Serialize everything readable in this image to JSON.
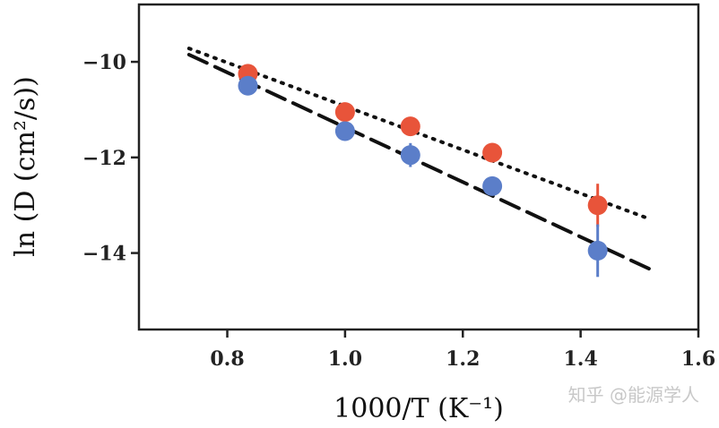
{
  "chart_data": {
    "type": "scatter",
    "title": "",
    "xlabel": "1000/T (K⁻¹)",
    "ylabel": "ln (D (cm²/s))",
    "xlim": [
      0.65,
      1.6
    ],
    "ylim": [
      -15.6,
      -8.8
    ],
    "x_ticks": [
      0.8,
      1.0,
      1.2,
      1.4,
      1.6
    ],
    "x_tick_labels": [
      "0.8",
      "1.0",
      "1.2",
      "1.4",
      "1.6"
    ],
    "y_ticks": [
      -10,
      -12,
      -14
    ],
    "y_tick_labels": [
      "−10",
      "−12",
      "−14"
    ],
    "grid": false,
    "series": [
      {
        "color": "#e8543a",
        "x": [
          0.835,
          1.0,
          1.111,
          1.25,
          1.429
        ],
        "y": [
          -10.25,
          -11.05,
          -11.35,
          -11.9,
          -13.0
        ],
        "yerr": [
          0,
          0,
          0,
          0,
          0.45
        ],
        "fit": {
          "x": [
            0.735,
            1.52
          ],
          "y": [
            -9.72,
            -13.3
          ],
          "style": "dotted"
        }
      },
      {
        "color": "#5b7ec9",
        "x": [
          0.835,
          1.0,
          1.111,
          1.25,
          1.429
        ],
        "y": [
          -10.5,
          -11.45,
          -11.95,
          -12.6,
          -13.95
        ],
        "yerr": [
          0,
          0,
          0.25,
          0,
          0.55
        ],
        "fit": {
          "x": [
            0.735,
            1.52
          ],
          "y": [
            -9.85,
            -14.35
          ],
          "style": "dashed"
        }
      }
    ]
  },
  "watermark": "知乎 @能源学人"
}
